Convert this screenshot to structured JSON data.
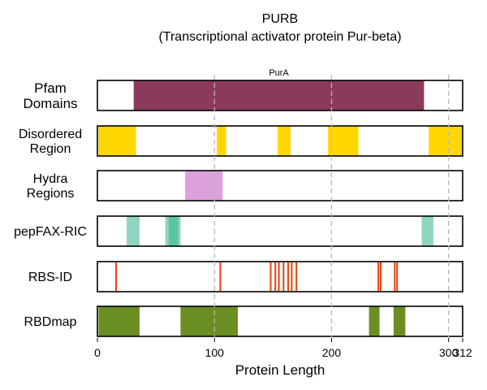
{
  "chart_data": {
    "type": "bar",
    "title": "PURB",
    "subtitle": "(Transcriptional activator protein Pur-beta)",
    "xlabel": "Protein Length",
    "xlim": [
      0,
      312
    ],
    "xticks": [
      0,
      100,
      200,
      300,
      312
    ],
    "xtick_labels": [
      "0",
      "100",
      "200",
      "300",
      "312"
    ],
    "gridlines_x": [
      100,
      200,
      300
    ],
    "tracks": [
      {
        "name": "Pfam\nDomains",
        "color": "#8B3A5C",
        "segments": [
          {
            "start": 31,
            "end": 279,
            "label": "PurA"
          }
        ]
      },
      {
        "name": "Disordered\nRegion",
        "color": "#FFD700",
        "segments": [
          {
            "start": 1,
            "end": 33
          },
          {
            "start": 102,
            "end": 110
          },
          {
            "start": 154,
            "end": 165
          },
          {
            "start": 197,
            "end": 223
          },
          {
            "start": 283,
            "end": 312
          }
        ]
      },
      {
        "name": "Hydra\nRegions",
        "color": "#DDA0DD",
        "segments": [
          {
            "start": 75,
            "end": 107
          }
        ]
      },
      {
        "name": "pepFAX-RIC",
        "color": "#8FD3C1",
        "segments": [
          {
            "start": 25,
            "end": 36
          },
          {
            "start": 58,
            "end": 71
          },
          {
            "start": 277,
            "end": 287
          }
        ],
        "overlap_color": "#5BC4A3",
        "overlaps": [
          {
            "start": 61,
            "end": 69
          }
        ]
      },
      {
        "name": "RBS-ID",
        "color": "#E8400C",
        "marks": [
          16,
          105,
          148,
          152,
          155,
          159,
          163,
          166,
          170,
          240,
          242,
          254,
          256
        ]
      },
      {
        "name": "RBDmap",
        "color": "#6B8E23",
        "segments": [
          {
            "start": 1,
            "end": 36
          },
          {
            "start": 71,
            "end": 120
          },
          {
            "start": 232,
            "end": 241
          },
          {
            "start": 253,
            "end": 263
          }
        ]
      }
    ]
  }
}
